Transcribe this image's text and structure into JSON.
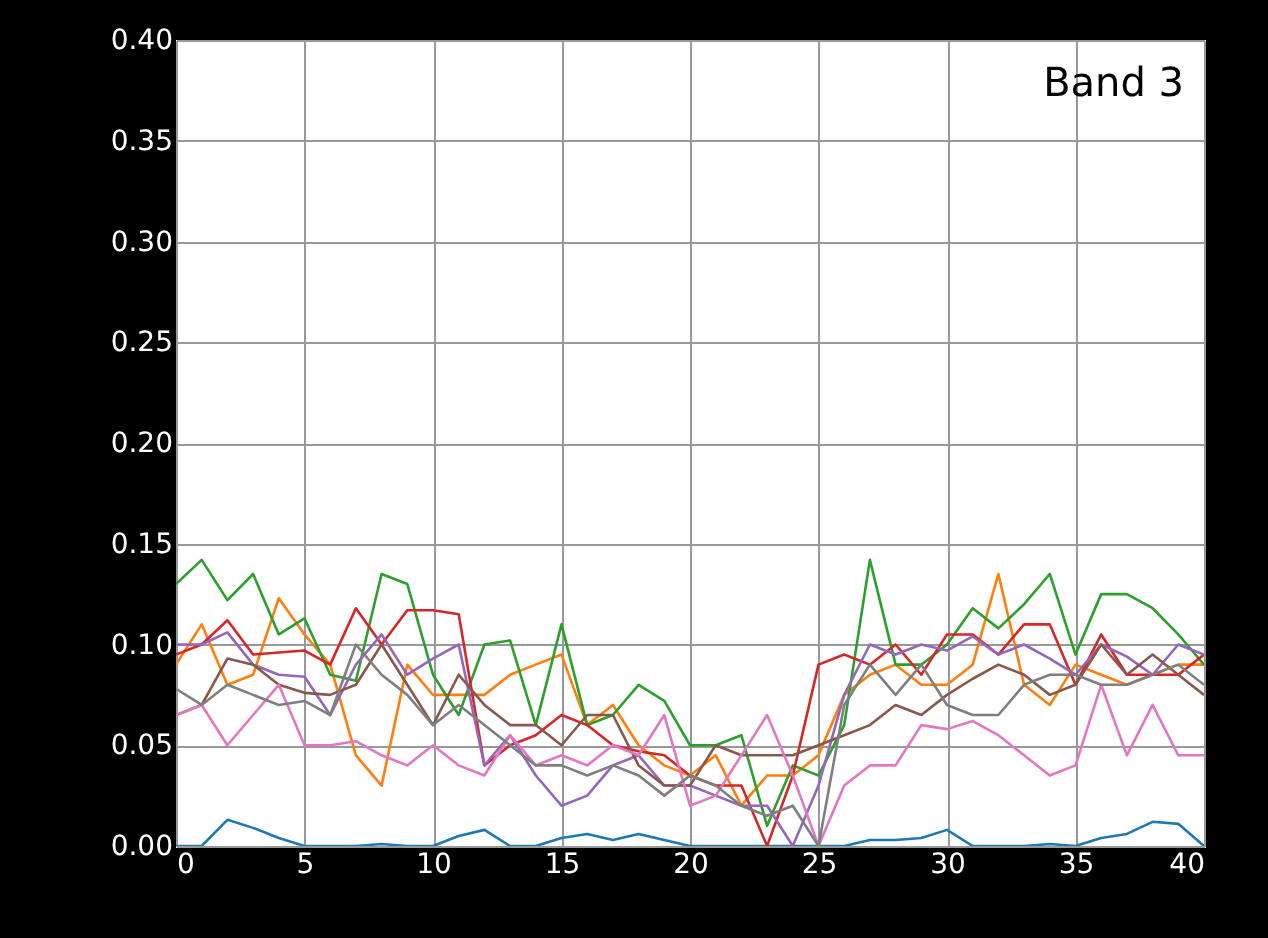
{
  "chart_data": {
    "type": "line",
    "annotations": [
      "Band 3"
    ],
    "x": [
      0,
      1,
      2,
      3,
      4,
      5,
      6,
      7,
      8,
      9,
      10,
      11,
      12,
      13,
      14,
      15,
      16,
      17,
      18,
      19,
      20,
      21,
      22,
      23,
      24,
      25,
      26,
      27,
      28,
      29,
      30,
      31,
      32,
      33,
      34,
      35,
      36,
      37,
      38,
      39,
      40
    ],
    "xlim": [
      0,
      40
    ],
    "xticks": [
      0,
      5,
      10,
      15,
      20,
      25,
      30,
      35,
      40
    ],
    "ylim": [
      0,
      0.4
    ],
    "yticks": [
      {
        "value": 0,
        "label": "0.00"
      },
      0.05,
      {
        "value": 0.1,
        "label": "0.10"
      },
      0.15,
      {
        "value": 0.2,
        "label": "0.20"
      },
      0.25,
      {
        "value": 0.3,
        "label": "0.30"
      },
      0.35,
      {
        "value": 0.4,
        "label": "0.40"
      }
    ],
    "grid": true,
    "line_style": "solid",
    "marker": "none",
    "series": [
      {
        "color": "#1f77b4",
        "values": [
          0,
          0,
          0.013,
          0.009,
          0.004,
          0,
          0,
          0,
          0.001,
          0,
          0,
          0.005,
          0.008,
          0,
          0,
          0.004,
          0.006,
          0.003,
          0.006,
          0.003,
          0,
          0,
          0,
          0,
          0,
          0,
          0,
          0.003,
          0.003,
          0.004,
          0.008,
          0,
          0,
          0,
          0.001,
          0,
          0.004,
          0.006,
          0.012,
          0.011,
          0
        ]
      },
      {
        "color": "#ff7f0e",
        "values": [
          0.09,
          0.11,
          0.08,
          0.085,
          0.123,
          0.105,
          0.09,
          0.045,
          0.03,
          0.09,
          0.075,
          0.075,
          0.075,
          0.085,
          0.09,
          0.095,
          0.06,
          0.07,
          0.05,
          0.04,
          0.035,
          0.045,
          0.02,
          0.035,
          0.035,
          0.045,
          0.075,
          0.085,
          0.09,
          0.08,
          0.08,
          0.09,
          0.135,
          0.08,
          0.07,
          0.09,
          0.085,
          0.08,
          0.085,
          0.09,
          0.09
        ]
      },
      {
        "color": "#2ca02c",
        "values": [
          0.13,
          0.142,
          0.122,
          0.135,
          0.105,
          0.113,
          0.085,
          0.082,
          0.135,
          0.13,
          0.085,
          0.065,
          0.1,
          0.102,
          0.06,
          0.11,
          0.06,
          0.065,
          0.08,
          0.072,
          0.05,
          0.05,
          0.055,
          0.01,
          0.04,
          0.035,
          0.06,
          0.142,
          0.09,
          0.09,
          0.1,
          0.118,
          0.108,
          0.12,
          0.135,
          0.095,
          0.125,
          0.125,
          0.118,
          0.105,
          0.09
        ]
      },
      {
        "color": "#d62728",
        "values": [
          0.095,
          0.1,
          0.112,
          0.095,
          0.096,
          0.097,
          0.09,
          0.118,
          0.1,
          0.117,
          0.117,
          0.115,
          0.04,
          0.05,
          0.055,
          0.065,
          0.06,
          0.05,
          0.047,
          0.045,
          0.035,
          0.03,
          0.03,
          0.0,
          0.035,
          0.09,
          0.095,
          0.09,
          0.1,
          0.085,
          0.105,
          0.105,
          0.095,
          0.11,
          0.11,
          0.08,
          0.105,
          0.085,
          0.085,
          0.085,
          0.095
        ]
      },
      {
        "color": "#9467bd",
        "values": [
          0.1,
          0.1,
          0.106,
          0.09,
          0.085,
          0.084,
          0.065,
          0.09,
          0.105,
          0.085,
          0.093,
          0.1,
          0.04,
          0.055,
          0.035,
          0.02,
          0.025,
          0.04,
          0.045,
          0.03,
          0.03,
          0.025,
          0.02,
          0.02,
          0.0,
          0.03,
          0.075,
          0.1,
          0.095,
          0.1,
          0.097,
          0.104,
          0.095,
          0.1,
          0.093,
          0.085,
          0.1,
          0.094,
          0.085,
          0.1,
          0.095
        ]
      },
      {
        "color": "#8c564b",
        "values": [
          0.065,
          0.07,
          0.093,
          0.09,
          0.08,
          0.076,
          0.075,
          0.08,
          0.1,
          0.08,
          0.06,
          0.085,
          0.07,
          0.06,
          0.06,
          0.05,
          0.065,
          0.065,
          0.04,
          0.03,
          0.03,
          0.05,
          0.045,
          0.045,
          0.045,
          0.05,
          0.055,
          0.06,
          0.07,
          0.065,
          0.075,
          0.083,
          0.09,
          0.085,
          0.075,
          0.08,
          0.1,
          0.085,
          0.095,
          0.085,
          0.075
        ]
      },
      {
        "color": "#e377c2",
        "values": [
          0.065,
          0.07,
          0.05,
          0.065,
          0.08,
          0.05,
          0.05,
          0.052,
          0.045,
          0.04,
          0.05,
          0.04,
          0.035,
          0.055,
          0.04,
          0.045,
          0.04,
          0.05,
          0.045,
          0.065,
          0.02,
          0.025,
          0.045,
          0.065,
          0.035,
          0.0,
          0.03,
          0.04,
          0.04,
          0.06,
          0.058,
          0.062,
          0.055,
          0.045,
          0.035,
          0.04,
          0.08,
          0.045,
          0.07,
          0.045,
          0.045
        ]
      },
      {
        "color": "#7f7f7f",
        "values": [
          0.078,
          0.07,
          0.08,
          0.075,
          0.07,
          0.072,
          0.065,
          0.1,
          0.085,
          0.075,
          0.06,
          0.07,
          0.06,
          0.05,
          0.04,
          0.04,
          0.035,
          0.04,
          0.035,
          0.025,
          0.035,
          0.03,
          0.02,
          0.015,
          0.02,
          0.0,
          0.07,
          0.09,
          0.075,
          0.09,
          0.07,
          0.065,
          0.065,
          0.08,
          0.085,
          0.085,
          0.08,
          0.08,
          0.085,
          0.09,
          0.08
        ]
      }
    ]
  }
}
